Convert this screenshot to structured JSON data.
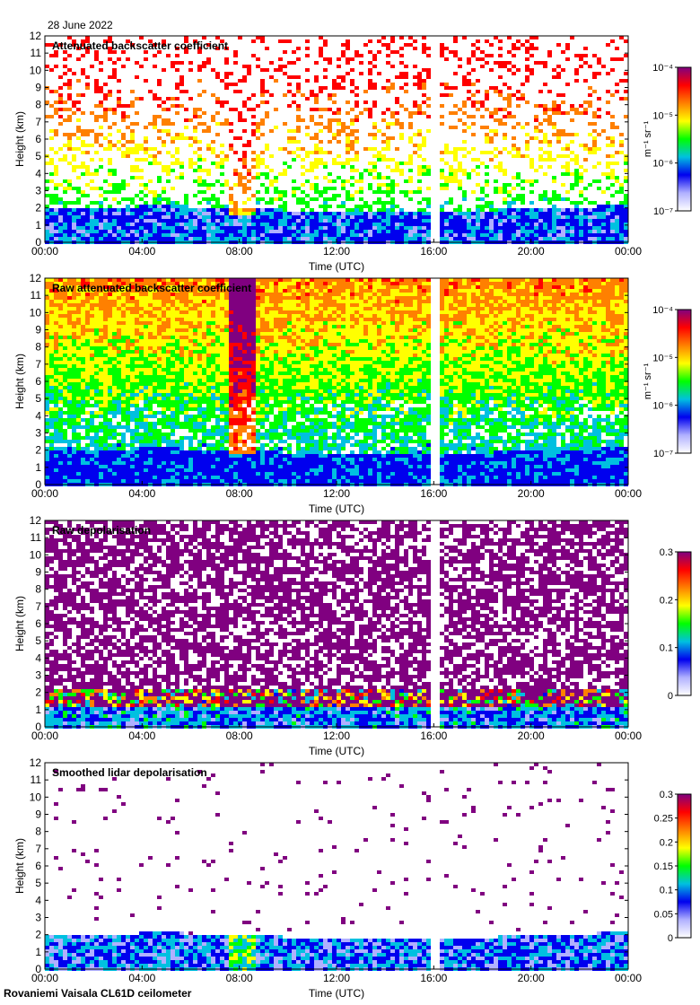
{
  "date_label": "28 June 2022",
  "footer_label": "Rovaniemi Vaisala CL61D ceilometer",
  "chart_data": [
    {
      "type": "heatmap",
      "title": "Attenuated backscatter coefficient",
      "xlabel": "Time (UTC)",
      "ylabel": "Height (km)",
      "xlim": [
        0,
        24
      ],
      "ylim": [
        0,
        12
      ],
      "x_ticks": [
        "00:00",
        "04:00",
        "08:00",
        "12:00",
        "16:00",
        "20:00",
        "00:00"
      ],
      "y_ticks": [
        "0",
        "1",
        "2",
        "3",
        "4",
        "5",
        "6",
        "7",
        "8",
        "9",
        "10",
        "11",
        "12"
      ],
      "data_gap_hours": [
        15.75,
        16.1
      ],
      "colorbar": {
        "scale": "log",
        "unit": "m⁻¹ sr⁻¹",
        "ticks": [
          "10⁻⁴",
          "10⁻⁵",
          "10⁻⁶",
          "10⁻⁷"
        ],
        "range": [
          1e-07,
          0.0001
        ]
      },
      "profile": "backscatter",
      "boundary_layer_top_km": 2.0,
      "feature_time_hours": 8.0
    },
    {
      "type": "heatmap",
      "title": "Raw attenuated backscatter coefficient",
      "xlabel": "Time (UTC)",
      "ylabel": "Height (km)",
      "xlim": [
        0,
        24
      ],
      "ylim": [
        0,
        12
      ],
      "x_ticks": [
        "00:00",
        "04:00",
        "08:00",
        "12:00",
        "16:00",
        "20:00",
        "00:00"
      ],
      "y_ticks": [
        "0",
        "1",
        "2",
        "3",
        "4",
        "5",
        "6",
        "7",
        "8",
        "9",
        "10",
        "11",
        "12"
      ],
      "data_gap_hours": [
        15.75,
        16.1
      ],
      "colorbar": {
        "scale": "log",
        "unit": "m⁻¹ sr⁻¹",
        "ticks": [
          "10⁻⁴",
          "10⁻⁵",
          "10⁻⁶",
          "10⁻⁷"
        ],
        "range": [
          1e-07,
          0.0001
        ]
      },
      "profile": "raw",
      "boundary_layer_top_km": 2.0,
      "feature_time_hours": 8.0
    },
    {
      "type": "heatmap",
      "title": "Raw depolarisation",
      "xlabel": "Time (UTC)",
      "ylabel": "Height (km)",
      "xlim": [
        0,
        24
      ],
      "ylim": [
        0,
        12
      ],
      "x_ticks": [
        "00:00",
        "04:00",
        "08:00",
        "12:00",
        "16:00",
        "20:00",
        "00:00"
      ],
      "y_ticks": [
        "0",
        "1",
        "2",
        "3",
        "4",
        "5",
        "6",
        "7",
        "8",
        "9",
        "10",
        "11",
        "12"
      ],
      "data_gap_hours": [
        15.75,
        16.1
      ],
      "colorbar": {
        "scale": "linear",
        "unit": "",
        "ticks": [
          "0.3",
          "0.2",
          "0.1",
          "0"
        ],
        "range": [
          0,
          0.3
        ]
      },
      "profile": "rawdepol",
      "boundary_layer_top_km": 2.0,
      "feature_time_hours": 8.0
    },
    {
      "type": "heatmap",
      "title": "Smoothed lidar depolarisation",
      "xlabel": "Time (UTC)",
      "ylabel": "Height (km)",
      "xlim": [
        0,
        24
      ],
      "ylim": [
        0,
        12
      ],
      "x_ticks": [
        "00:00",
        "04:00",
        "08:00",
        "12:00",
        "16:00",
        "20:00",
        "00:00"
      ],
      "y_ticks": [
        "0",
        "1",
        "2",
        "3",
        "4",
        "5",
        "6",
        "7",
        "8",
        "9",
        "10",
        "11",
        "12"
      ],
      "data_gap_hours": [
        15.75,
        16.1
      ],
      "colorbar": {
        "scale": "linear",
        "unit": "",
        "ticks": [
          "0.3",
          "0.25",
          "0.2",
          "0.15",
          "0.1",
          "0.05",
          "0"
        ],
        "range": [
          0,
          0.3
        ]
      },
      "profile": "smoothdepol",
      "boundary_layer_top_km": 2.0,
      "feature_time_hours": 8.0
    }
  ],
  "colors": {
    "scale": [
      "#ffffff",
      "#b0b0ff",
      "#0000ee",
      "#00c0e0",
      "#00ff00",
      "#ffff00",
      "#ff8000",
      "#ff0000",
      "#800080"
    ],
    "background": "#ffffff",
    "axis": "#000000"
  }
}
